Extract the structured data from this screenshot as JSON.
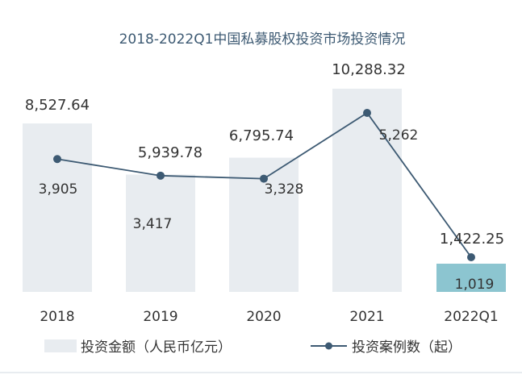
{
  "chart_data": {
    "type": "bar",
    "title": "2018-2022Q1中国私募股权投资市场投资情况",
    "categories": [
      "2018",
      "2019",
      "2020",
      "2021",
      "2022Q1"
    ],
    "series": [
      {
        "name": "投资金额（人民币亿元）",
        "type": "bar",
        "values": [
          8527.64,
          5939.78,
          6795.74,
          10288.32,
          1422.25
        ],
        "labels": [
          "8,527.64",
          "5,939.78",
          "6,795.74",
          "10,288.32",
          "1,422.25"
        ]
      },
      {
        "name": "投资案例数（起）",
        "type": "line",
        "values": [
          3905,
          3417,
          3328,
          5262,
          1019
        ],
        "labels": [
          "3,905",
          "3,417",
          "3,328",
          "5,262",
          "1,019"
        ]
      }
    ],
    "legend_position": "bottom",
    "grid": false,
    "colors": {
      "bar": "#e8ecf0",
      "bar_highlight": "#8cc5d0",
      "line": "#3d5a73",
      "title": "#3d5a73",
      "text": "#333333"
    }
  }
}
